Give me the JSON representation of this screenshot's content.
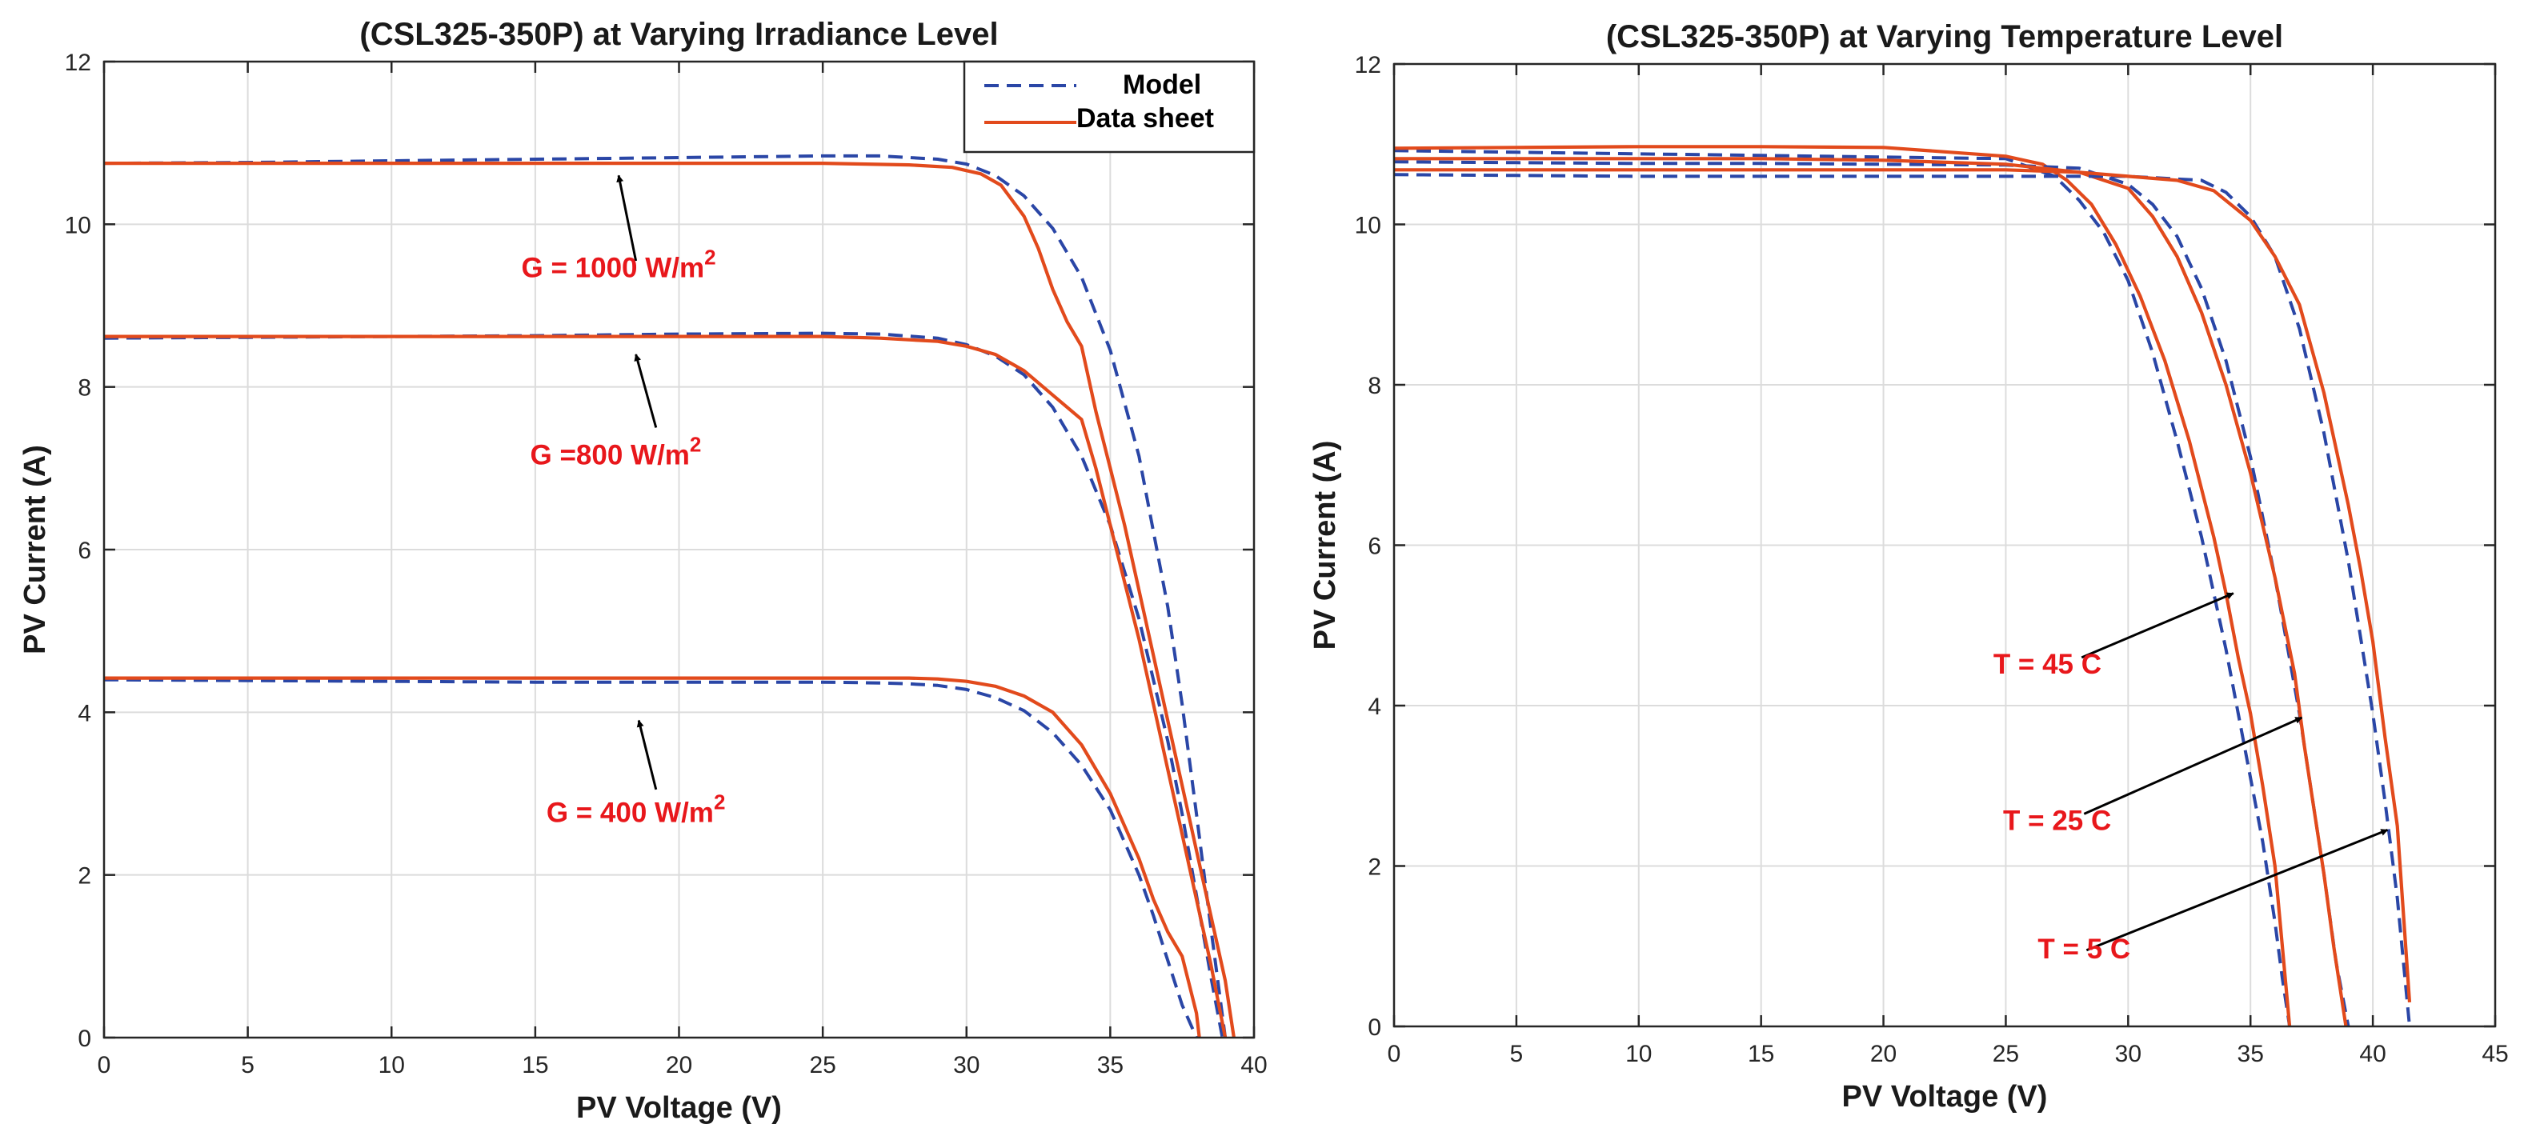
{
  "chart_data": [
    {
      "type": "line",
      "title": "(CSL325-350P) at Varying Irradiance Level",
      "xlabel": "PV Voltage (V)",
      "ylabel": "PV Current (A)",
      "xlim": [
        0,
        40
      ],
      "ylim": [
        0,
        12
      ],
      "xticks": [
        0,
        5,
        10,
        15,
        20,
        25,
        30,
        35,
        40
      ],
      "yticks": [
        0,
        2,
        4,
        6,
        8,
        10,
        12
      ],
      "grid": true,
      "legend": {
        "position": "top-right",
        "entries": [
          {
            "label": "Model",
            "style": "dashed",
            "color": "#2a46a6"
          },
          {
            "label": "Data sheet",
            "style": "solid",
            "color": "#e24a1c"
          }
        ]
      },
      "series": [
        {
          "name": "Model",
          "condition": "G = 1000 W/m2",
          "style": "dashed",
          "color": "#2a46a6",
          "x": [
            0,
            5,
            10,
            15,
            20,
            25,
            27,
            29,
            30,
            31,
            32,
            33,
            34,
            35,
            36,
            37,
            37.5,
            38,
            38.5,
            39
          ],
          "y": [
            10.75,
            10.76,
            10.78,
            10.8,
            10.82,
            10.84,
            10.84,
            10.8,
            10.74,
            10.6,
            10.35,
            9.95,
            9.35,
            8.45,
            7.15,
            5.3,
            4.1,
            2.75,
            1.35,
            0
          ]
        },
        {
          "name": "Data sheet",
          "condition": "G = 1000 W/m2",
          "style": "solid",
          "color": "#e24a1c",
          "x": [
            0,
            5,
            10,
            15,
            20,
            25,
            28,
            29.5,
            30.5,
            31.2,
            32,
            32.5,
            33,
            33.5,
            34,
            34.5,
            35,
            35.5,
            36,
            36.5,
            37,
            37.5,
            38,
            38.5,
            39,
            39.3
          ],
          "y": [
            10.75,
            10.75,
            10.75,
            10.75,
            10.75,
            10.75,
            10.73,
            10.7,
            10.62,
            10.48,
            10.1,
            9.7,
            9.2,
            8.8,
            8.5,
            7.7,
            7.0,
            6.3,
            5.5,
            4.7,
            3.9,
            3.1,
            2.3,
            1.5,
            0.7,
            0
          ]
        },
        {
          "name": "Model",
          "condition": "G = 800 W/m2",
          "style": "dashed",
          "color": "#2a46a6",
          "x": [
            0,
            5,
            10,
            15,
            20,
            25,
            27,
            29,
            30,
            31,
            32,
            33,
            34,
            35,
            36,
            37,
            37.5,
            38,
            38.5,
            38.9
          ],
          "y": [
            8.6,
            8.61,
            8.62,
            8.63,
            8.65,
            8.66,
            8.65,
            8.6,
            8.52,
            8.38,
            8.15,
            7.75,
            7.15,
            6.3,
            5.15,
            3.65,
            2.75,
            1.75,
            0.75,
            0
          ]
        },
        {
          "name": "Data sheet",
          "condition": "G = 800 W/m2",
          "style": "solid",
          "color": "#e24a1c",
          "x": [
            0,
            5,
            10,
            15,
            20,
            25,
            27,
            29,
            30,
            31,
            32,
            33,
            34,
            34.5,
            35,
            35.5,
            36,
            36.5,
            37,
            37.5,
            38,
            38.5,
            39
          ],
          "y": [
            8.62,
            8.62,
            8.62,
            8.62,
            8.62,
            8.62,
            8.6,
            8.56,
            8.5,
            8.4,
            8.2,
            7.9,
            7.6,
            7.0,
            6.3,
            5.6,
            4.9,
            4.1,
            3.3,
            2.5,
            1.7,
            0.9,
            0
          ]
        },
        {
          "name": "Model",
          "condition": "G = 400 W/m2",
          "style": "dashed",
          "color": "#2a46a6",
          "x": [
            0,
            5,
            10,
            15,
            20,
            25,
            27,
            28,
            29,
            30,
            31,
            32,
            33,
            34,
            35,
            36,
            36.5,
            37,
            37.5,
            38
          ],
          "y": [
            4.4,
            4.39,
            4.38,
            4.37,
            4.37,
            4.37,
            4.36,
            4.35,
            4.33,
            4.28,
            4.18,
            4.02,
            3.75,
            3.35,
            2.8,
            2.0,
            1.5,
            0.95,
            0.4,
            0
          ]
        },
        {
          "name": "Data sheet",
          "condition": "G = 400 W/m2",
          "style": "solid",
          "color": "#e24a1c",
          "x": [
            0,
            5,
            10,
            15,
            20,
            25,
            28,
            29,
            30,
            31,
            32,
            33,
            34,
            35,
            36,
            36.5,
            37,
            37.5,
            38,
            38.1
          ],
          "y": [
            4.42,
            4.42,
            4.42,
            4.42,
            4.42,
            4.42,
            4.42,
            4.41,
            4.38,
            4.32,
            4.2,
            4.0,
            3.6,
            3.0,
            2.2,
            1.7,
            1.3,
            1.0,
            0.3,
            0
          ]
        }
      ],
      "annotations": [
        {
          "text": "G = 1000 W/m",
          "superscript": "2",
          "label_x": 17.9,
          "label_y": 9.35,
          "arrow_from": [
            18.5,
            9.55
          ],
          "arrow_to": [
            17.9,
            10.6
          ]
        },
        {
          "text": "G =800 W/m",
          "superscript": "2",
          "label_x": 17.8,
          "label_y": 7.05,
          "arrow_from": [
            19.2,
            7.5
          ],
          "arrow_to": [
            18.5,
            8.4
          ]
        },
        {
          "text": "G = 400 W/m",
          "superscript": "2",
          "label_x": 18.5,
          "label_y": 2.65,
          "arrow_from": [
            19.2,
            3.05
          ],
          "arrow_to": [
            18.6,
            3.9
          ]
        }
      ]
    },
    {
      "type": "line",
      "title": "(CSL325-350P) at Varying Temperature Level",
      "xlabel": "PV Voltage (V)",
      "ylabel": "PV Current (A)",
      "xlim": [
        0,
        45
      ],
      "ylim": [
        0,
        12
      ],
      "xticks": [
        0,
        5,
        10,
        15,
        20,
        25,
        30,
        35,
        40,
        45
      ],
      "yticks": [
        0,
        2,
        4,
        6,
        8,
        10,
        12
      ],
      "grid": true,
      "series": [
        {
          "name": "Model",
          "condition": "T = 45 C",
          "style": "dashed",
          "color": "#2a46a6",
          "x": [
            0,
            5,
            10,
            15,
            20,
            25,
            27,
            28,
            29,
            30,
            31,
            32,
            33,
            34,
            35,
            35.5,
            36,
            36.3,
            36.6
          ],
          "y": [
            10.92,
            10.9,
            10.88,
            10.86,
            10.84,
            10.82,
            10.6,
            10.3,
            9.9,
            9.3,
            8.4,
            7.3,
            6.1,
            4.7,
            3.1,
            2.3,
            1.3,
            0.6,
            0
          ]
        },
        {
          "name": "Data sheet",
          "condition": "T = 45 C",
          "style": "solid",
          "color": "#e24a1c",
          "x": [
            0,
            5,
            10,
            15,
            20,
            25,
            26.5,
            27.5,
            28.5,
            29.5,
            30.5,
            31.5,
            32.5,
            33.5,
            34,
            34.5,
            35,
            35.5,
            36,
            36.3,
            36.6
          ],
          "y": [
            10.95,
            10.96,
            10.97,
            10.97,
            10.96,
            10.85,
            10.75,
            10.55,
            10.25,
            9.75,
            9.1,
            8.3,
            7.3,
            6.1,
            5.4,
            4.6,
            3.9,
            3.0,
            2.0,
            1.0,
            0
          ]
        },
        {
          "name": "Model",
          "condition": "T = 25 C",
          "style": "dashed",
          "color": "#2a46a6",
          "x": [
            0,
            5,
            10,
            15,
            20,
            25,
            28,
            30,
            31,
            32,
            33,
            34,
            35,
            36,
            37,
            37.5,
            38,
            38.5,
            39
          ],
          "y": [
            10.78,
            10.77,
            10.76,
            10.76,
            10.75,
            10.74,
            10.7,
            10.5,
            10.25,
            9.85,
            9.2,
            8.3,
            7.1,
            5.6,
            3.9,
            2.9,
            1.9,
            0.8,
            0
          ]
        },
        {
          "name": "Data sheet",
          "condition": "T = 25 C",
          "style": "solid",
          "color": "#e24a1c",
          "x": [
            0,
            5,
            10,
            15,
            20,
            25,
            28,
            30,
            31,
            32,
            33,
            34,
            35,
            36,
            36.8,
            37.2,
            37.6,
            38,
            38.4,
            38.9
          ],
          "y": [
            10.82,
            10.82,
            10.82,
            10.82,
            10.8,
            10.75,
            10.65,
            10.45,
            10.1,
            9.6,
            8.9,
            8.0,
            6.9,
            5.6,
            4.4,
            3.5,
            2.7,
            1.9,
            1.0,
            0
          ]
        },
        {
          "name": "Model",
          "condition": "T = 5 C",
          "style": "dashed",
          "color": "#2a46a6",
          "x": [
            0,
            5,
            10,
            15,
            20,
            25,
            30,
            33,
            34,
            35,
            36,
            37,
            38,
            39,
            40,
            40.5,
            41,
            41.5
          ],
          "y": [
            10.62,
            10.61,
            10.6,
            10.6,
            10.6,
            10.6,
            10.6,
            10.55,
            10.4,
            10.1,
            9.6,
            8.7,
            7.4,
            5.8,
            3.9,
            2.8,
            1.6,
            0
          ]
        },
        {
          "name": "Data sheet",
          "condition": "T = 5 C",
          "style": "solid",
          "color": "#e24a1c",
          "x": [
            0,
            5,
            10,
            15,
            20,
            25,
            28,
            30,
            32,
            33.5,
            35,
            36,
            37,
            38,
            39,
            39.5,
            40,
            40.5,
            41,
            41.5
          ],
          "y": [
            10.68,
            10.68,
            10.68,
            10.68,
            10.68,
            10.68,
            10.65,
            10.6,
            10.55,
            10.42,
            10.05,
            9.6,
            9.0,
            7.9,
            6.5,
            5.7,
            4.8,
            3.6,
            2.5,
            0.3
          ]
        }
      ],
      "annotations": [
        {
          "text": "T = 45 C",
          "label_x": 26.7,
          "label_y": 4.4,
          "arrow_from": [
            28.1,
            4.6
          ],
          "arrow_to": [
            34.3,
            5.4
          ]
        },
        {
          "text": "T = 25 C",
          "label_x": 27.1,
          "label_y": 2.45,
          "arrow_from": [
            28.2,
            2.65
          ],
          "arrow_to": [
            37.1,
            3.85
          ]
        },
        {
          "text": "T = 5 C",
          "label_x": 28.2,
          "label_y": 0.85,
          "arrow_from": [
            28.3,
            0.95
          ],
          "arrow_to": [
            40.6,
            2.45
          ]
        }
      ]
    }
  ]
}
